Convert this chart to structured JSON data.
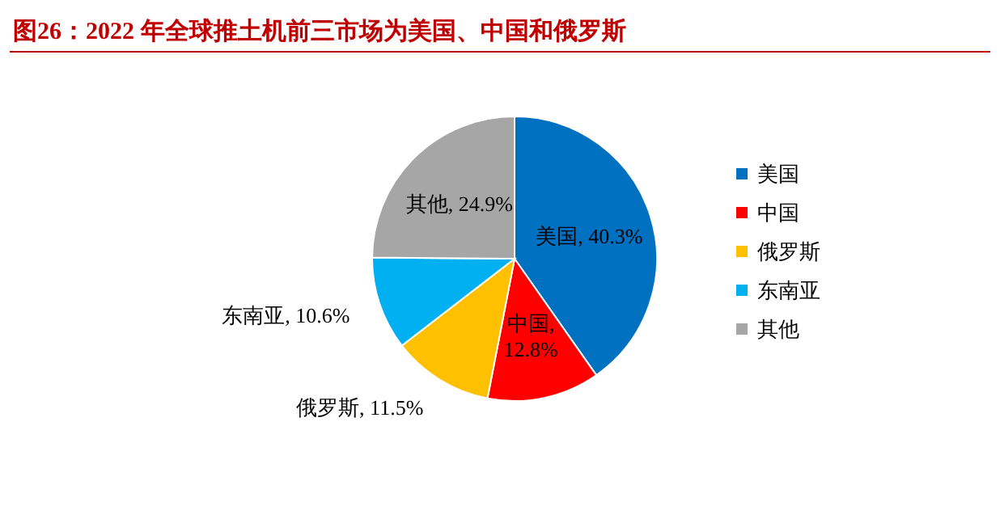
{
  "chart_data": {
    "type": "pie",
    "title": "图26：2022 年全球推土机前三市场为美国、中国和俄罗斯",
    "categories": [
      "美国",
      "中国",
      "俄罗斯",
      "东南亚",
      "其他"
    ],
    "values": [
      40.3,
      12.8,
      11.5,
      10.6,
      24.9
    ],
    "value_labels": [
      "美国, 40.3%",
      "中国,\n12.8%",
      "俄罗斯, 11.5%",
      "东南亚, 10.6%",
      "其他, 24.9%"
    ],
    "colors": [
      "#0070c0",
      "#ff0000",
      "#ffc000",
      "#00b0f0",
      "#a6a6a6"
    ],
    "legend": "right"
  }
}
